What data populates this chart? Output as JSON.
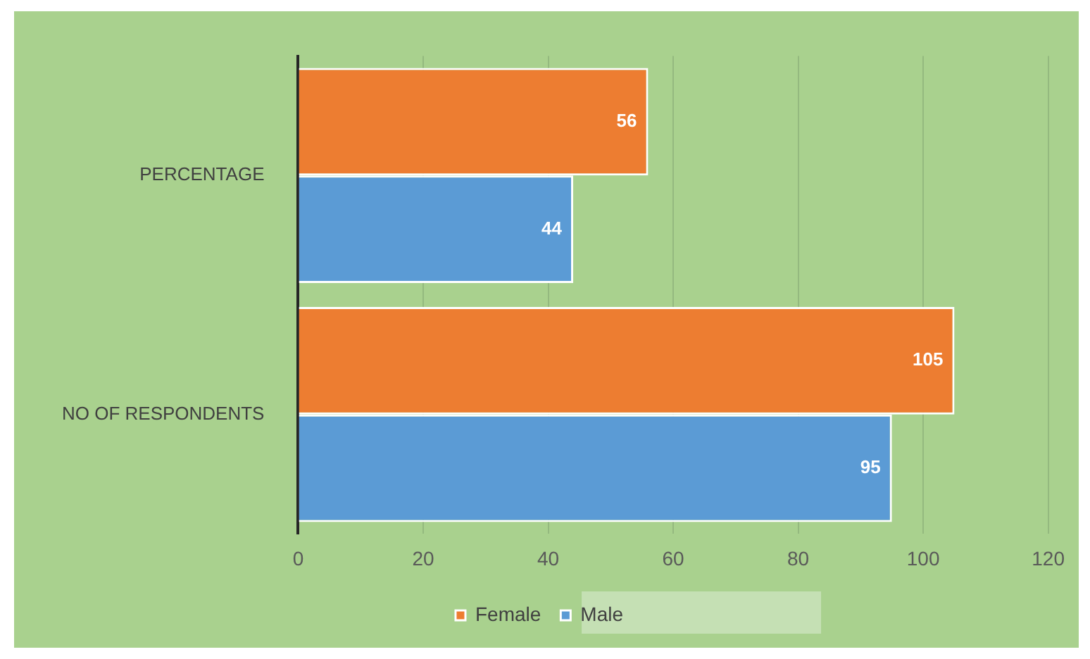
{
  "chart_data": {
    "type": "bar",
    "orientation": "horizontal",
    "categories": [
      "PERCENTAGE",
      "NO OF RESPONDENTS"
    ],
    "series": [
      {
        "name": "Female",
        "color": "#ed7d31",
        "values": [
          56,
          105
        ]
      },
      {
        "name": "Male",
        "color": "#5b9bd5",
        "values": [
          44,
          95
        ]
      }
    ],
    "xlim": [
      0,
      120
    ],
    "xticks": [
      0,
      20,
      40,
      60,
      80,
      100,
      120
    ],
    "grid": "x",
    "legend": "bottom",
    "data_labels": true
  }
}
